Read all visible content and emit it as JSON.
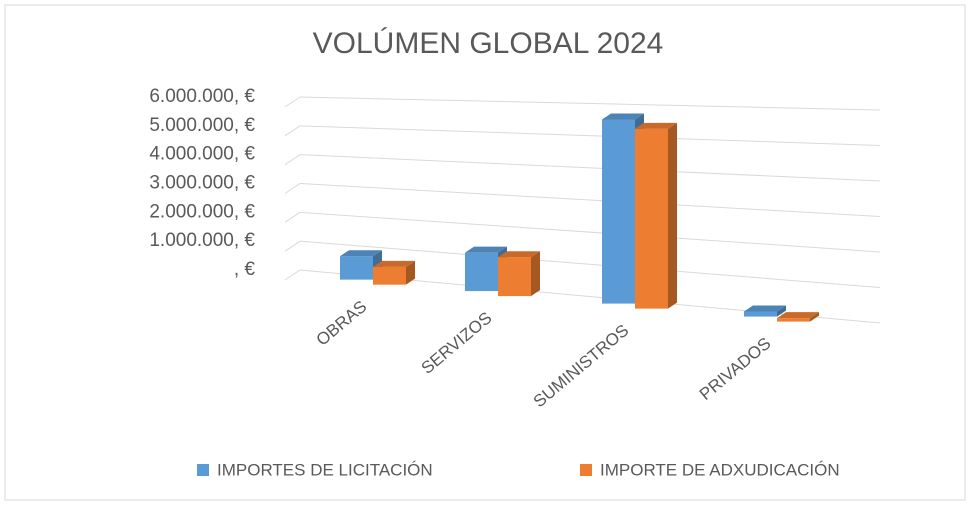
{
  "chart_data": {
    "type": "bar3d",
    "title": "VOLÚMEN GLOBAL 2024",
    "categories": [
      "OBRAS",
      "SERVIZOS",
      "SUMINISTROS",
      "PRIVADOS"
    ],
    "series": [
      {
        "name": "IMPORTES DE LICITACIÓN",
        "color": "#5b9bd5",
        "values": [
          800000,
          1250000,
          5700000,
          150000
        ]
      },
      {
        "name": "IMPORTE DE ADXUDICACIÓN",
        "color": "#ed7d31",
        "values": [
          600000,
          1250000,
          5500000,
          100000
        ]
      }
    ],
    "ylim": [
      0,
      6000000
    ],
    "yticks": [
      {
        "value": 0,
        "label": ", €"
      },
      {
        "value": 1000000,
        "label": "1.000.000, €"
      },
      {
        "value": 2000000,
        "label": "2.000.000, €"
      },
      {
        "value": 3000000,
        "label": "3.000.000, €"
      },
      {
        "value": 4000000,
        "label": "4.000.000, €"
      },
      {
        "value": 5000000,
        "label": "5.000.000, €"
      },
      {
        "value": 6000000,
        "label": "6.000.000, €"
      }
    ],
    "grid": true,
    "legend": "bottom"
  }
}
